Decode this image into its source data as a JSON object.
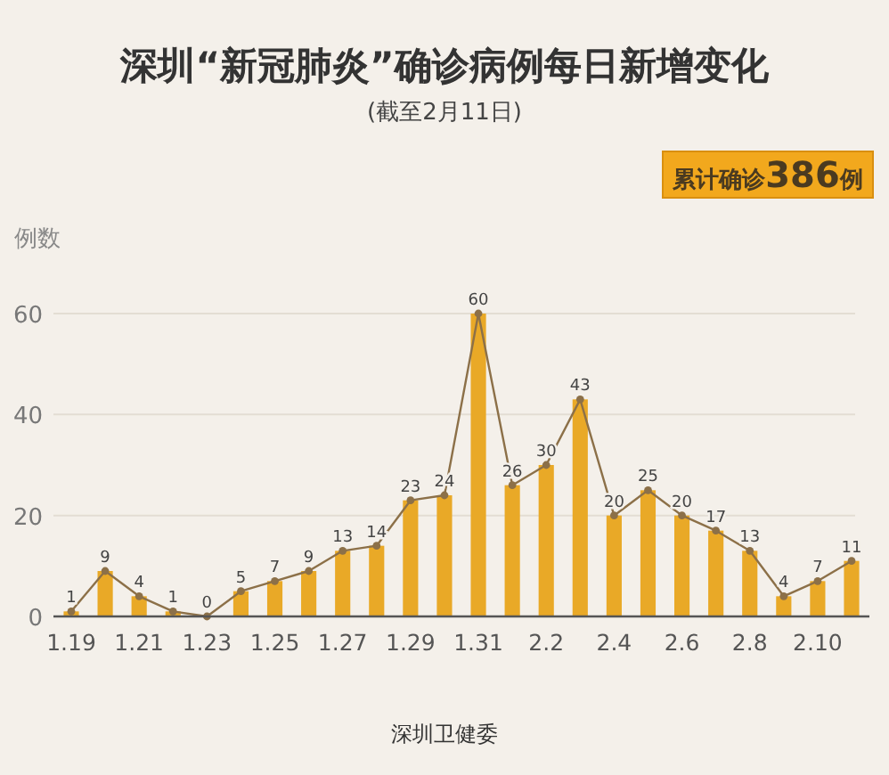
{
  "chart_data": {
    "type": "bar",
    "title": "深圳“新冠肺炎”确诊病例每日新增变化",
    "subtitle": "(截至2月11日)",
    "ylabel": "例数",
    "annotations": [
      "累计确诊386例",
      "深圳卫健委"
    ],
    "categories": [
      "1.19",
      null,
      "1.21",
      null,
      "1.23",
      null,
      "1.25",
      null,
      "1.27",
      null,
      "1.29",
      null,
      "1.31",
      null,
      "2.2",
      null,
      "2.4",
      null,
      "2.6",
      null,
      "2.8",
      null,
      "2.10",
      null
    ],
    "series": [
      {
        "color": "#e9a927",
        "values": [
          1,
          9,
          4,
          1,
          0,
          5,
          7,
          9,
          13,
          14,
          23,
          24,
          60,
          26,
          30,
          43,
          20,
          25,
          20,
          17,
          13,
          4,
          7,
          11
        ]
      },
      {
        "type": "line",
        "color": "#8c7048",
        "values": [
          1,
          9,
          4,
          1,
          0,
          5,
          7,
          9,
          13,
          14,
          23,
          24,
          60,
          26,
          30,
          43,
          20,
          25,
          20,
          17,
          13,
          4,
          7,
          11
        ],
        "value_labels": [
          "1",
          "9",
          "4",
          "1",
          "0",
          "5",
          "7",
          "9",
          "13",
          "14",
          "23",
          "24",
          "60",
          "26",
          "30",
          "43",
          "20",
          "25",
          "20",
          "17",
          "13",
          "4",
          "7",
          "11"
        ]
      }
    ],
    "ylim": [
      0,
      60
    ],
    "yticks": [
      0,
      20,
      40,
      60
    ],
    "grid": "y",
    "marker": "circle",
    "line_style": "solid"
  }
}
